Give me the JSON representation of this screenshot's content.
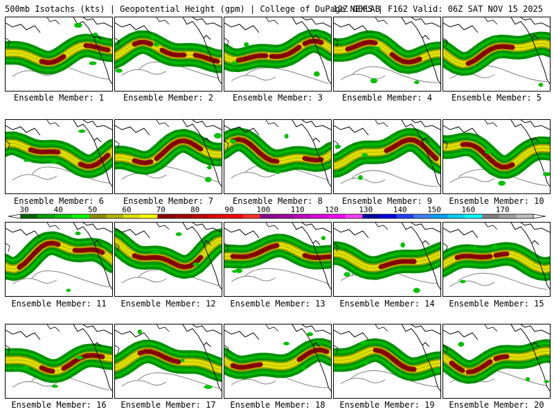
{
  "header": {
    "left_title": "500mb Isotachs (kts) | Geopotential Height (gpm) | College of DuPage NEXLAB",
    "right_title": "12Z GEFS | F162 Valid: 06Z SAT NOV 15 2025"
  },
  "colorbar": {
    "tick_labels": [
      "30",
      "40",
      "50",
      "60",
      "70",
      "80",
      "90",
      "100",
      "110",
      "120",
      "130",
      "140",
      "150",
      "160",
      "170"
    ],
    "colors": [
      "#006400",
      "#00a000",
      "#00cc00",
      "#00ff00",
      "#8c8c00",
      "#b4b400",
      "#e0e000",
      "#ffff00",
      "#8b0000",
      "#a00000",
      "#c00000",
      "#e00000",
      "#ff0000",
      "#ff3030",
      "#8b008b",
      "#a000a0",
      "#c000c0",
      "#e000e0",
      "#ff00ff",
      "#ff40ff",
      "#0000a0",
      "#0000e0",
      "#2040ff",
      "#4080ff",
      "#00a0ff",
      "#00d0ff",
      "#00ffff",
      "#808080",
      "#a0a0a0",
      "#c0c0c0"
    ]
  },
  "colors": {
    "background": "#ffffff",
    "land_outline": "#000000",
    "height_contour": "#808080",
    "speed_40_50": "#00c000",
    "speed_50_60": "#009000",
    "speed_60_70": "#b4b400",
    "speed_70_80": "#e0e000",
    "speed_80_plus": "#8b0000"
  },
  "members": [
    {
      "label": "Ensemble Member: 1"
    },
    {
      "label": "Ensemble Member: 2"
    },
    {
      "label": "Ensemble Member: 3"
    },
    {
      "label": "Ensemble Member: 4"
    },
    {
      "label": "Ensemble Member: 5"
    },
    {
      "label": "Ensemble Member: 6"
    },
    {
      "label": "Ensemble Member: 7"
    },
    {
      "label": "Ensemble Member: 8"
    },
    {
      "label": "Ensemble Member: 9"
    },
    {
      "label": "Ensemble Member: 10"
    },
    {
      "label": "Ensemble Member: 11"
    },
    {
      "label": "Ensemble Member: 12"
    },
    {
      "label": "Ensemble Member: 13"
    },
    {
      "label": "Ensemble Member: 14"
    },
    {
      "label": "Ensemble Member: 15"
    },
    {
      "label": "Ensemble Member: 16"
    },
    {
      "label": "Ensemble Member: 17"
    },
    {
      "label": "Ensemble Member: 18"
    },
    {
      "label": "Ensemble Member: 19"
    },
    {
      "label": "Ensemble Member: 20"
    }
  ]
}
